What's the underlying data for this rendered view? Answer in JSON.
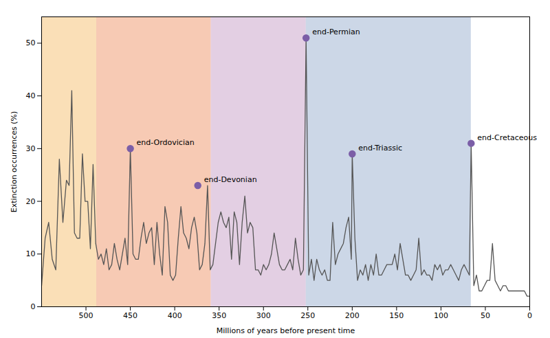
{
  "chart_data": {
    "type": "line",
    "xlabel": "Millions of years before present time",
    "ylabel": "Extinction occurrences (%)",
    "xlim": [
      550,
      0
    ],
    "ylim": [
      0,
      55
    ],
    "xticks": [
      500,
      450,
      400,
      350,
      300,
      250,
      200,
      150,
      100,
      50,
      0
    ],
    "yticks": [
      0,
      10,
      20,
      30,
      40,
      50
    ],
    "grid": false,
    "color": "#555555",
    "bands": [
      {
        "xmin": 550,
        "xmax": 488,
        "color": "#f5c070"
      },
      {
        "xmin": 488,
        "xmax": 359,
        "color": "#f0956a"
      },
      {
        "xmin": 359,
        "xmax": 252,
        "color": "#c8a0c8"
      },
      {
        "xmin": 252,
        "xmax": 66,
        "color": "#9ab0d0"
      }
    ],
    "annotations": [
      {
        "text": "end-Ordovician",
        "x": 450,
        "y": 30,
        "color": "#7b5ea7"
      },
      {
        "text": "end-Devonian",
        "x": 374,
        "y": 23,
        "color": "#7b5ea7"
      },
      {
        "text": "end-Permian",
        "x": 252,
        "y": 51,
        "color": "#7b5ea7"
      },
      {
        "text": "end-Triassic",
        "x": 200,
        "y": 29,
        "color": "#7b5ea7"
      },
      {
        "text": "end-Cretaceous",
        "x": 66,
        "y": 31,
        "color": "#7b5ea7"
      }
    ],
    "x": [
      550,
      546,
      542,
      538,
      534,
      530,
      526,
      522,
      519,
      516,
      513,
      510,
      507,
      504,
      501,
      498,
      495,
      492,
      489,
      486,
      483,
      480,
      477,
      474,
      471,
      468,
      465,
      462,
      459,
      456,
      453,
      450,
      447,
      444,
      441,
      438,
      435,
      432,
      429,
      426,
      423,
      420,
      417,
      414,
      411,
      408,
      405,
      402,
      399,
      396,
      393,
      390,
      387,
      384,
      381,
      378,
      375,
      372,
      369,
      366,
      363,
      360,
      357,
      354,
      351,
      348,
      345,
      342,
      339,
      336,
      333,
      330,
      327,
      324,
      321,
      318,
      315,
      312,
      309,
      306,
      303,
      300,
      297,
      294,
      291,
      288,
      285,
      282,
      279,
      276,
      273,
      270,
      267,
      264,
      261,
      258,
      255,
      252,
      249,
      246,
      243,
      240,
      237,
      234,
      231,
      228,
      225,
      222,
      219,
      216,
      213,
      210,
      207,
      204,
      201,
      200,
      197,
      194,
      191,
      188,
      185,
      182,
      179,
      176,
      173,
      170,
      167,
      164,
      161,
      158,
      155,
      152,
      149,
      146,
      143,
      140,
      137,
      134,
      131,
      128,
      125,
      122,
      119,
      116,
      113,
      110,
      107,
      104,
      101,
      98,
      95,
      92,
      89,
      86,
      83,
      80,
      77,
      74,
      71,
      68,
      66,
      63,
      60,
      57,
      54,
      51,
      48,
      45,
      42,
      39,
      36,
      33,
      30,
      27,
      24,
      21,
      18,
      15,
      12,
      9,
      6,
      3,
      0
    ],
    "values": [
      4,
      13,
      16,
      9,
      7,
      28,
      16,
      24,
      23,
      41,
      14,
      13,
      13,
      29,
      20,
      20,
      11,
      27,
      12,
      9,
      10,
      8,
      11,
      7,
      8,
      12,
      9,
      7,
      10,
      13,
      8,
      30,
      10,
      9,
      9,
      13,
      16,
      12,
      14,
      15,
      8,
      16,
      10,
      6,
      19,
      16,
      6,
      5,
      6,
      13,
      19,
      14,
      13,
      11,
      15,
      17,
      14,
      7,
      8,
      12,
      23,
      7,
      8,
      12,
      16,
      18,
      16,
      15,
      17,
      9,
      18,
      16,
      8,
      16,
      21,
      14,
      16,
      15,
      7,
      7,
      6,
      8,
      7,
      8,
      10,
      14,
      11,
      8,
      7,
      7,
      8,
      9,
      7,
      13,
      9,
      6,
      7,
      51,
      6,
      9,
      5,
      9,
      7,
      6,
      7,
      5,
      5,
      16,
      8,
      10,
      11,
      12,
      15,
      17,
      9,
      29,
      13,
      5,
      7,
      6,
      8,
      5,
      8,
      6,
      10,
      6,
      6,
      7,
      8,
      8,
      8,
      10,
      7,
      12,
      9,
      6,
      6,
      5,
      6,
      7,
      13,
      6,
      7,
      6,
      6,
      5,
      8,
      7,
      8,
      6,
      7,
      7,
      8,
      7,
      6,
      5,
      7,
      8,
      7,
      6,
      31,
      4,
      6,
      3,
      3,
      4,
      5,
      5,
      12,
      5,
      4,
      3,
      4,
      4,
      3,
      3,
      3,
      3,
      3,
      3,
      3,
      2,
      2
    ]
  }
}
